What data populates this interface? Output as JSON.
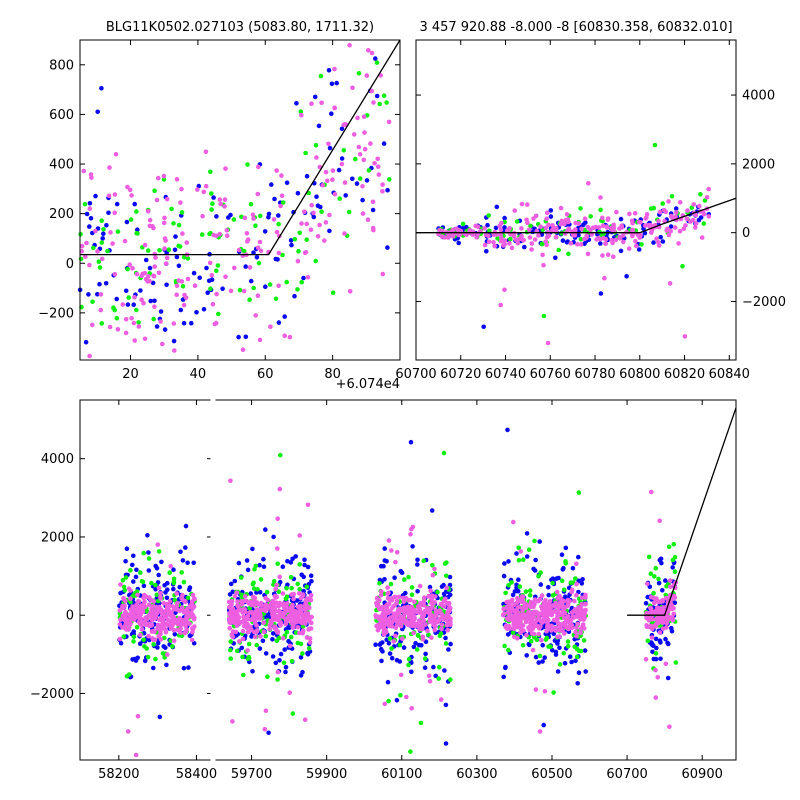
{
  "colors": {
    "blue": "#0a0af0",
    "green": "#10f010",
    "magenta": "#ee5ee0",
    "line": "#000000"
  },
  "chart_data": [
    {
      "type": "scatter",
      "title": "BLG11K0502.027103 (5083.80, 1711.32)",
      "xlabel": "",
      "ylabel": "",
      "xlim": [
        5,
        100
      ],
      "ylim": [
        -390,
        900
      ],
      "xticks": [
        20,
        40,
        60,
        80
      ],
      "yticks": [
        -200,
        0,
        200,
        400,
        600,
        800
      ],
      "offset_label": "+6.074e4",
      "series": [
        {
          "name": "blue",
          "count": 140,
          "seed": 11
        },
        {
          "name": "green",
          "count": 110,
          "seed": 12
        },
        {
          "name": "magenta",
          "count": 220,
          "seed": 13
        }
      ],
      "model_line": {
        "x": [
          5,
          61,
          100
        ],
        "y": [
          35,
          35,
          900
        ]
      }
    },
    {
      "type": "scatter",
      "title": "3 457 920.88 -8.000 -8 [60830.358, 60832.010]",
      "xlim": [
        60700,
        60843
      ],
      "ylim": [
        -3700,
        5600
      ],
      "xticks": [
        60700,
        60720,
        60740,
        60760,
        60780,
        60800,
        60820,
        60840
      ],
      "yticks": [
        -2000,
        0,
        2000,
        4000
      ],
      "series": [
        {
          "name": "blue",
          "count": 150,
          "seed": 21
        },
        {
          "name": "green",
          "count": 90,
          "seed": 22
        },
        {
          "name": "magenta",
          "count": 260,
          "seed": 23
        }
      ],
      "model_line": {
        "x": [
          60700,
          60800,
          60810,
          60843
        ],
        "y": [
          0,
          0,
          250,
          1000
        ]
      }
    },
    {
      "type": "scatter",
      "title": "",
      "ylim": [
        -3700,
        5500
      ],
      "yticks": [
        -2000,
        0,
        2000,
        4000
      ],
      "segments": [
        {
          "xlim": [
            58100,
            58440
          ],
          "xticks": [
            58200,
            58400
          ],
          "clusters": [
            [
              58200,
              58395
            ]
          ]
        },
        {
          "xlim": [
            59600,
            60990
          ],
          "xticks": [
            59700,
            59900,
            60100,
            60300,
            60500,
            60700,
            60900
          ],
          "clusters": [
            [
              59640,
              59860
            ],
            [
              60030,
              60230
            ],
            [
              60370,
              60590
            ],
            [
              60750,
              60830
            ]
          ]
        }
      ],
      "series": [
        {
          "name": "blue",
          "count": 180,
          "seed": 31
        },
        {
          "name": "green",
          "count": 100,
          "seed": 32
        },
        {
          "name": "magenta",
          "count": 300,
          "seed": 33
        }
      ],
      "model_line": {
        "x": [
          60700,
          60800,
          60990
        ],
        "y": [
          0,
          0,
          5300
        ]
      }
    }
  ]
}
